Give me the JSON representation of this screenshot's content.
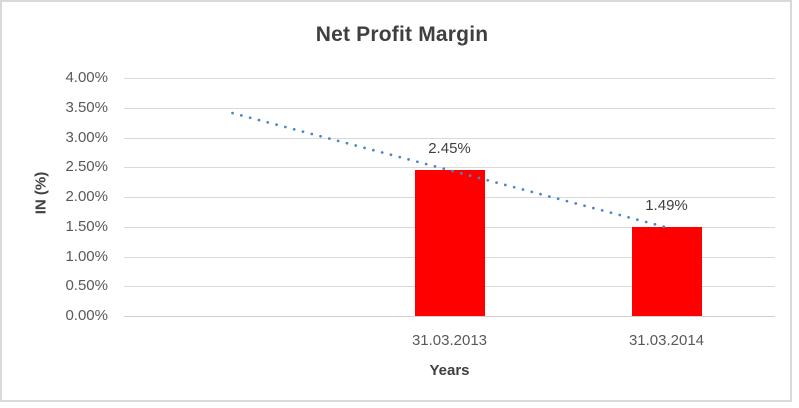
{
  "frame": {
    "background": "#FFFFFF",
    "border_color": "#D9D9D9"
  },
  "chart_data": {
    "type": "bar",
    "title": "Net Profit Margin",
    "xlabel": "Years",
    "ylabel": "IN (%)",
    "categories": [
      "31.03.2013",
      "31.03.2014"
    ],
    "values": [
      2.45,
      1.49
    ],
    "data_labels": [
      "2.45%",
      "1.49%"
    ],
    "value_unit": "%",
    "ylim": [
      0,
      4.0
    ],
    "ytick_step": 0.5,
    "ytick_labels": [
      "0.00%",
      "0.50%",
      "1.00%",
      "1.50%",
      "2.00%",
      "2.50%",
      "3.00%",
      "3.50%",
      "4.00%"
    ],
    "grid": true,
    "legend": "none",
    "bar_color": "#FF0000",
    "gridline_color": "#D9D9D9",
    "title_color": "#3F3F3F",
    "axis_label_color": "#595959",
    "axis_title_color": "#404040",
    "layout": {
      "category_slots": 3,
      "bar_slots": [
        1,
        2
      ],
      "note": "first category slot is empty; bars occupy slots 2 and 3"
    },
    "trendline": {
      "style": "dotted",
      "color": "#4A86C8",
      "points": [
        {
          "slot": 0,
          "value": 3.41
        },
        {
          "slot": 2,
          "value": 1.49
        }
      ]
    }
  }
}
